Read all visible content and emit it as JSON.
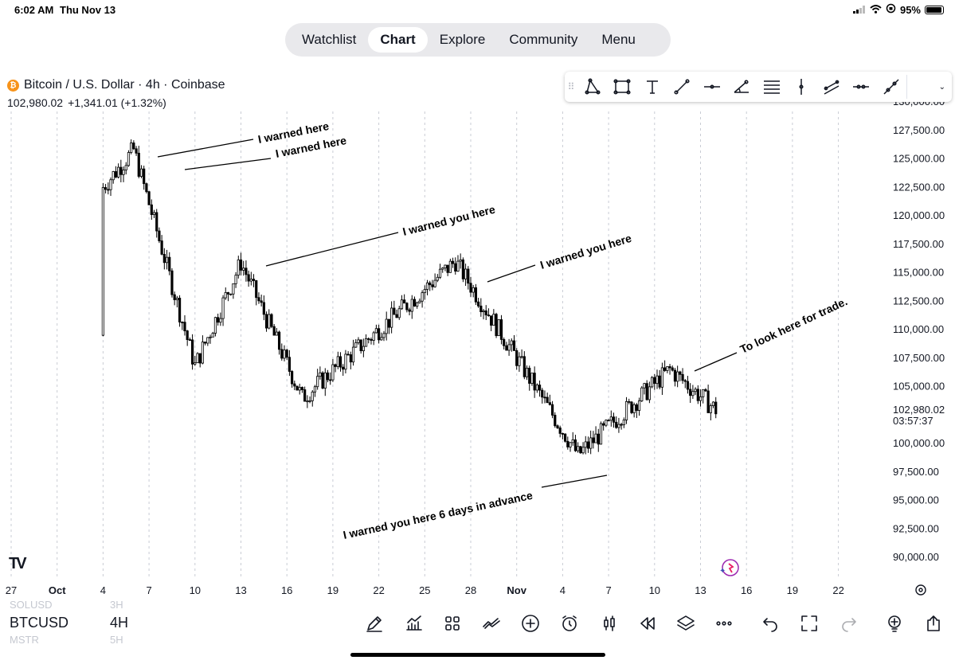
{
  "status_bar": {
    "time": "6:02 AM",
    "date": "Thu Nov 13",
    "battery": "95%"
  },
  "nav": {
    "tabs": [
      {
        "label": "Watchlist"
      },
      {
        "label": "Chart",
        "active": true
      },
      {
        "label": "Explore"
      },
      {
        "label": "Community"
      },
      {
        "label": "Menu"
      }
    ]
  },
  "symbol": {
    "title": "Bitcoin / U.S. Dollar · 4h · Coinbase",
    "logo_glyph": "₿",
    "price": "102,980.02",
    "change": "+1,341.01 (+1.32%)"
  },
  "colors": {
    "accent": "#131722",
    "grid": "#c9ccd4",
    "btc": "#f7931a",
    "assistant": "#9c27b0"
  },
  "drawing_tools": [
    "triangle-icon",
    "rectangle-icon",
    "text-icon",
    "trend-line-icon",
    "horizontal-line-icon",
    "angle-icon",
    "fib-levels-icon",
    "vertical-line-icon",
    "parallel-channel-icon",
    "horizontal-ray-icon",
    "extended-line-icon"
  ],
  "chart_data": {
    "type": "candlestick",
    "symbol": "BTCUSD",
    "interval": "4h",
    "y_ticks": [
      "130,000.00",
      "127,500.00",
      "125,000.00",
      "122,500.00",
      "120,000.00",
      "117,500.00",
      "115,000.00",
      "112,500.00",
      "110,000.00",
      "107,500.00",
      "105,000.00",
      "102,980.02",
      "100,000.00",
      "97,500.00",
      "95,000.00",
      "92,500.00",
      "90,000.00"
    ],
    "last_price_label": "102,980.02",
    "countdown": "03:57:37",
    "x_ticks": [
      "27",
      "Oct",
      "4",
      "7",
      "10",
      "13",
      "16",
      "19",
      "22",
      "25",
      "28",
      "Nov",
      "4",
      "7",
      "10",
      "13",
      "16",
      "19",
      "22"
    ],
    "ylim": [
      89000,
      131000
    ],
    "key_points": [
      {
        "date": "Sep 27",
        "price": 109500
      },
      {
        "date": "Oct 4",
        "price": 122500
      },
      {
        "date": "Oct 6",
        "price": 125800
      },
      {
        "date": "Oct 10",
        "price": 106800
      },
      {
        "date": "Oct 13",
        "price": 115900
      },
      {
        "date": "Oct 17",
        "price": 104000
      },
      {
        "date": "Oct 27",
        "price": 116000
      },
      {
        "date": "Nov 4",
        "price": 99000
      },
      {
        "date": "Nov 10",
        "price": 106500
      },
      {
        "date": "Nov 13",
        "price": 102980
      }
    ],
    "annotations": [
      {
        "text": "I warned here"
      },
      {
        "text": "I warned here"
      },
      {
        "text": "I warned you here"
      },
      {
        "text": "I warned you here"
      },
      {
        "text": "To look here for trade."
      },
      {
        "text": "I warned you here 6 days in advance"
      }
    ]
  },
  "bottom": {
    "symbols": [
      "SOLUSD",
      "BTCUSD",
      "MSTR"
    ],
    "timeframes": [
      "3H",
      "4H",
      "5H"
    ],
    "tools": [
      "pen-icon",
      "indicators-icon",
      "grid-icon",
      "compare-icon",
      "add-icon",
      "alert-icon",
      "candle-type-icon",
      "replay-icon",
      "layers-icon",
      "more-icon",
      "undo-icon",
      "fullscreen-icon",
      "redo-icon",
      "idea-icon",
      "share-icon"
    ]
  },
  "tv_logo": "TV"
}
